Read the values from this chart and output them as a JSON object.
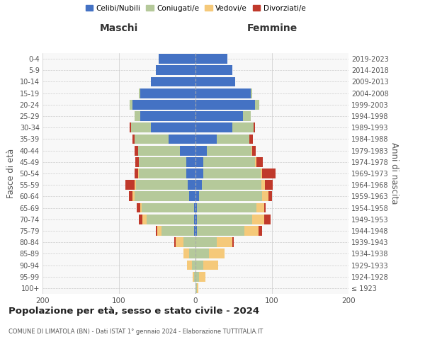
{
  "age_groups": [
    "100+",
    "95-99",
    "90-94",
    "85-89",
    "80-84",
    "75-79",
    "70-74",
    "65-69",
    "60-64",
    "55-59",
    "50-54",
    "45-49",
    "40-44",
    "35-39",
    "30-34",
    "25-29",
    "20-24",
    "15-19",
    "10-14",
    "5-9",
    "0-4"
  ],
  "birth_years": [
    "≤ 1923",
    "1924-1928",
    "1929-1933",
    "1934-1938",
    "1939-1943",
    "1944-1948",
    "1949-1953",
    "1954-1958",
    "1959-1963",
    "1964-1968",
    "1969-1973",
    "1974-1978",
    "1979-1983",
    "1984-1988",
    "1989-1993",
    "1994-1998",
    "1999-2003",
    "2004-2008",
    "2009-2013",
    "2014-2018",
    "2019-2023"
  ],
  "colors": {
    "celibe": "#4472c4",
    "coniugato": "#b5c99a",
    "vedovo": "#f5c97a",
    "divorziato": "#c0392b"
  },
  "males": {
    "celibe": [
      0,
      0,
      0,
      0,
      0,
      2,
      2,
      2,
      8,
      10,
      12,
      12,
      20,
      35,
      58,
      72,
      82,
      72,
      58,
      52,
      48
    ],
    "coniugato": [
      0,
      2,
      5,
      8,
      16,
      42,
      62,
      68,
      72,
      68,
      62,
      62,
      55,
      45,
      26,
      8,
      4,
      2,
      0,
      0,
      0
    ],
    "vedovo": [
      0,
      2,
      6,
      8,
      10,
      6,
      5,
      2,
      2,
      2,
      1,
      0,
      0,
      0,
      0,
      0,
      0,
      0,
      0,
      0,
      0
    ],
    "divorziato": [
      0,
      0,
      0,
      0,
      2,
      2,
      5,
      5,
      5,
      12,
      5,
      5,
      5,
      2,
      2,
      0,
      0,
      0,
      0,
      0,
      0
    ]
  },
  "females": {
    "nubile": [
      0,
      0,
      0,
      0,
      0,
      2,
      2,
      2,
      5,
      8,
      10,
      10,
      15,
      28,
      48,
      62,
      78,
      72,
      52,
      48,
      42
    ],
    "coniugata": [
      2,
      5,
      10,
      18,
      28,
      62,
      72,
      78,
      82,
      78,
      75,
      68,
      58,
      42,
      28,
      10,
      5,
      2,
      0,
      0,
      0
    ],
    "vedova": [
      2,
      8,
      20,
      20,
      20,
      18,
      16,
      10,
      8,
      5,
      2,
      2,
      1,
      0,
      0,
      0,
      0,
      0,
      0,
      0,
      0
    ],
    "divorziata": [
      0,
      0,
      0,
      0,
      2,
      5,
      8,
      2,
      5,
      10,
      18,
      8,
      5,
      5,
      2,
      0,
      0,
      0,
      0,
      0,
      0
    ]
  },
  "title": "Popolazione per età, sesso e stato civile - 2024",
  "subtitle": "COMUNE DI LIMATOLA (BN) - Dati ISTAT 1° gennaio 2024 - Elaborazione TUTTITALIA.IT",
  "xlabel_left": "Maschi",
  "xlabel_right": "Femmine",
  "ylabel_left": "Fasce di età",
  "ylabel_right": "Anni di nascita",
  "xlim": 200,
  "legend_labels": [
    "Celibi/Nubili",
    "Coniugati/e",
    "Vedovi/e",
    "Divorziati/e"
  ],
  "bg_color": "#ffffff",
  "plot_bg_color": "#f8f8f8",
  "grid_color": "#cccccc",
  "bar_height": 0.85
}
